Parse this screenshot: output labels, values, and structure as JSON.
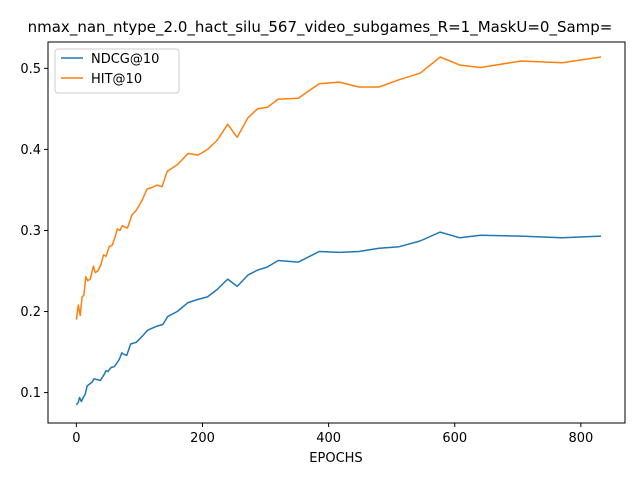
{
  "chart_data": {
    "type": "line",
    "title": "nmax_nan_ntype_2.0_hact_silu_567_video_subgames_R=1_MaskU=0_Samp=",
    "xlabel": "EPOCHS",
    "ylabel": "",
    "xlim": [
      -45,
      870
    ],
    "ylim": [
      0.0625,
      0.5325
    ],
    "xticks": [
      0,
      200,
      400,
      600,
      800
    ],
    "yticks": [
      0.1,
      0.2,
      0.3,
      0.4,
      0.5
    ],
    "grid": false,
    "legend_position": "top-left",
    "series": [
      {
        "name": "NDCG@10",
        "color": "#1f77b4",
        "points": [
          [
            0,
            0.085
          ],
          [
            3,
            0.088
          ],
          [
            5,
            0.094
          ],
          [
            8,
            0.089
          ],
          [
            11,
            0.094
          ],
          [
            14,
            0.098
          ],
          [
            17,
            0.108
          ],
          [
            20,
            0.11
          ],
          [
            25,
            0.113
          ],
          [
            28,
            0.117
          ],
          [
            33,
            0.116
          ],
          [
            38,
            0.115
          ],
          [
            43,
            0.121
          ],
          [
            47,
            0.127
          ],
          [
            50,
            0.126
          ],
          [
            55,
            0.131
          ],
          [
            60,
            0.132
          ],
          [
            64,
            0.136
          ],
          [
            68,
            0.141
          ],
          [
            72,
            0.149
          ],
          [
            76,
            0.147
          ],
          [
            80,
            0.146
          ],
          [
            86,
            0.16
          ],
          [
            95,
            0.162
          ],
          [
            105,
            0.17
          ],
          [
            113,
            0.177
          ],
          [
            128,
            0.182
          ],
          [
            137,
            0.184
          ],
          [
            145,
            0.194
          ],
          [
            160,
            0.2
          ],
          [
            177,
            0.211
          ],
          [
            193,
            0.215
          ],
          [
            208,
            0.218
          ],
          [
            223,
            0.227
          ],
          [
            240,
            0.24
          ],
          [
            255,
            0.231
          ],
          [
            272,
            0.245
          ],
          [
            287,
            0.251
          ],
          [
            303,
            0.255
          ],
          [
            320,
            0.263
          ],
          [
            352,
            0.261
          ],
          [
            385,
            0.274
          ],
          [
            417,
            0.273
          ],
          [
            448,
            0.274
          ],
          [
            480,
            0.278
          ],
          [
            512,
            0.28
          ],
          [
            545,
            0.287
          ],
          [
            577,
            0.298
          ],
          [
            608,
            0.291
          ],
          [
            641,
            0.294
          ],
          [
            705,
            0.293
          ],
          [
            770,
            0.291
          ],
          [
            832,
            0.293
          ]
        ]
      },
      {
        "name": "HIT@10",
        "color": "#ff7f0e",
        "points": [
          [
            0,
            0.19
          ],
          [
            3,
            0.208
          ],
          [
            6,
            0.195
          ],
          [
            9,
            0.218
          ],
          [
            12,
            0.22
          ],
          [
            15,
            0.243
          ],
          [
            18,
            0.238
          ],
          [
            22,
            0.24
          ],
          [
            27,
            0.256
          ],
          [
            30,
            0.248
          ],
          [
            34,
            0.25
          ],
          [
            39,
            0.258
          ],
          [
            43,
            0.27
          ],
          [
            47,
            0.268
          ],
          [
            52,
            0.28
          ],
          [
            57,
            0.282
          ],
          [
            61,
            0.291
          ],
          [
            65,
            0.302
          ],
          [
            69,
            0.3
          ],
          [
            73,
            0.306
          ],
          [
            77,
            0.304
          ],
          [
            81,
            0.303
          ],
          [
            88,
            0.319
          ],
          [
            95,
            0.325
          ],
          [
            104,
            0.337
          ],
          [
            112,
            0.351
          ],
          [
            120,
            0.353
          ],
          [
            128,
            0.356
          ],
          [
            136,
            0.354
          ],
          [
            144,
            0.373
          ],
          [
            160,
            0.381
          ],
          [
            177,
            0.395
          ],
          [
            193,
            0.393
          ],
          [
            208,
            0.4
          ],
          [
            223,
            0.411
          ],
          [
            240,
            0.431
          ],
          [
            255,
            0.415
          ],
          [
            272,
            0.439
          ],
          [
            287,
            0.45
          ],
          [
            303,
            0.452
          ],
          [
            320,
            0.462
          ],
          [
            352,
            0.463
          ],
          [
            385,
            0.481
          ],
          [
            417,
            0.483
          ],
          [
            448,
            0.477
          ],
          [
            480,
            0.477
          ],
          [
            512,
            0.486
          ],
          [
            545,
            0.494
          ],
          [
            577,
            0.514
          ],
          [
            608,
            0.504
          ],
          [
            641,
            0.501
          ],
          [
            705,
            0.509
          ],
          [
            770,
            0.507
          ],
          [
            832,
            0.514
          ]
        ]
      }
    ]
  }
}
